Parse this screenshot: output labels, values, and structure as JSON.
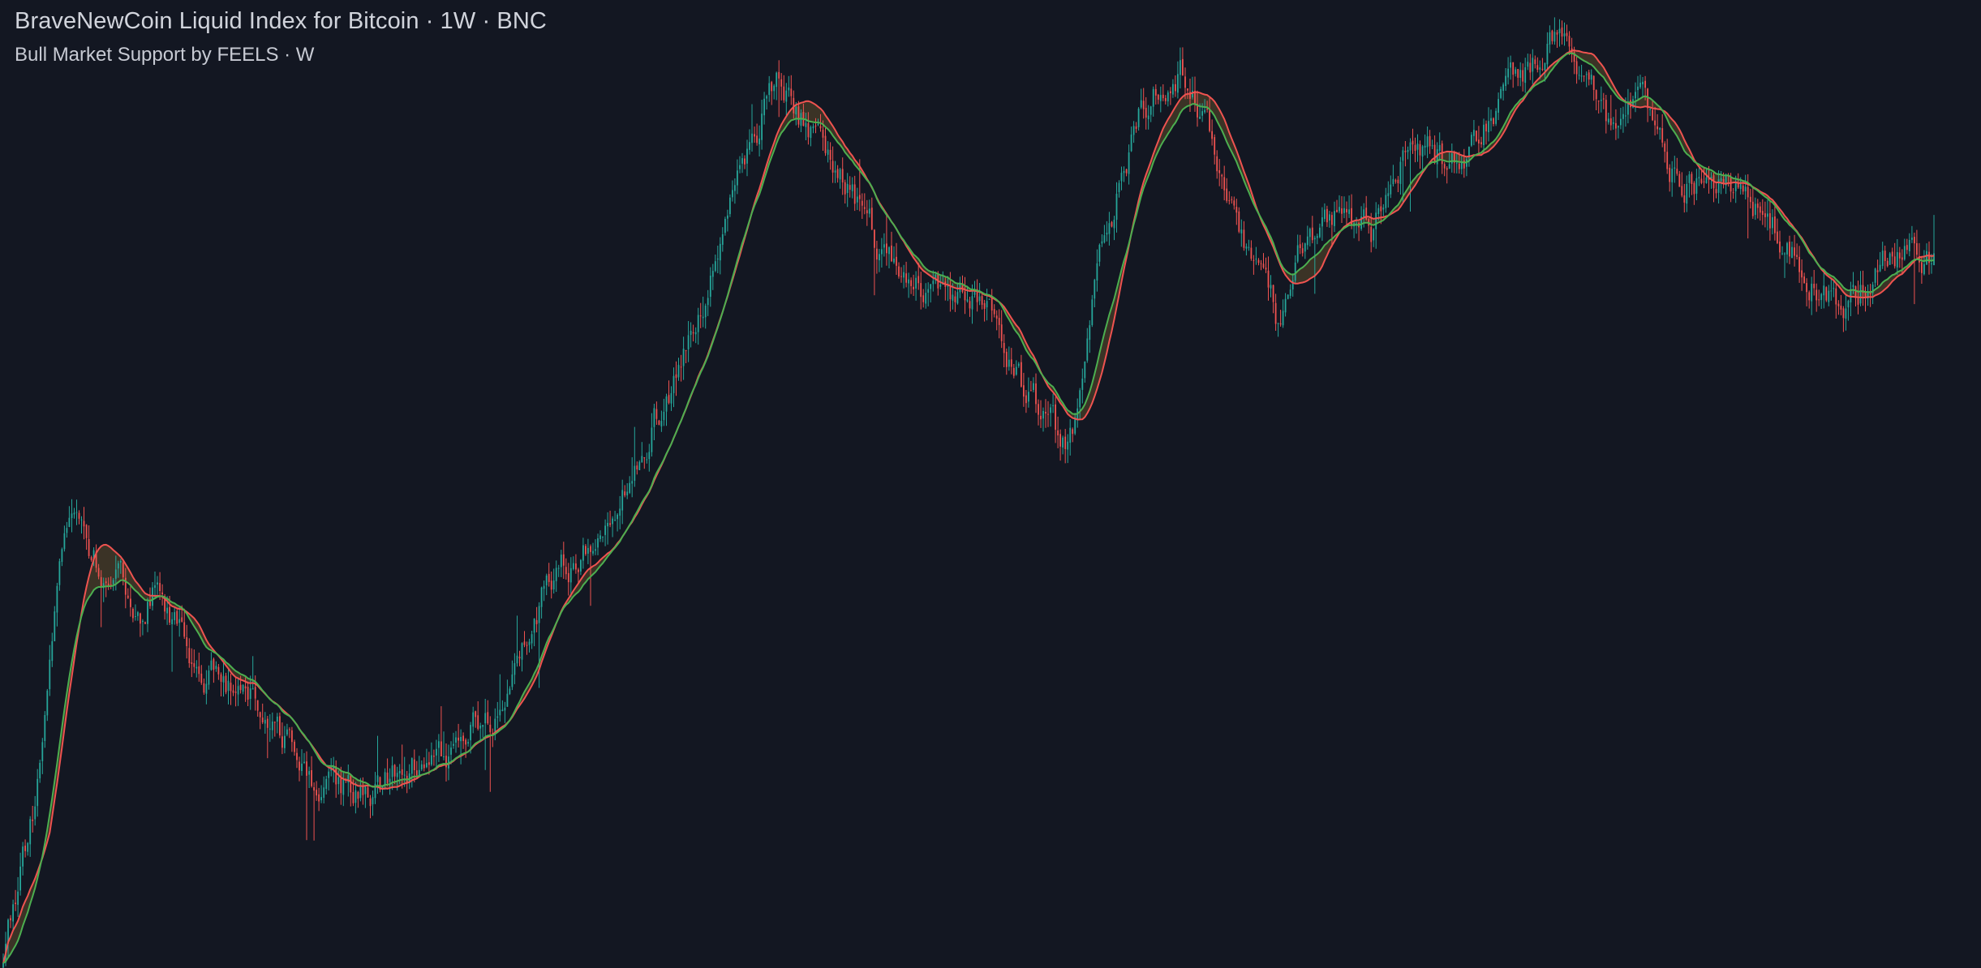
{
  "header": {
    "symbol_title": "BraveNewCoin Liquid Index for Bitcoin · 1W · BNC",
    "indicator_title": "Bull Market Support by FEELS · W"
  },
  "colors": {
    "background": "#131722",
    "text": "#d1d4dc",
    "candle_up": "#26a69a",
    "candle_down": "#ef5350",
    "support_band_red": "#ef5350",
    "support_band_green": "#4caf50",
    "band_fill": "#5d4a2a"
  },
  "chart_data": {
    "type": "candlestick",
    "title": "BraveNewCoin Liquid Index for Bitcoin · 1W · BNC",
    "subtitle": "Bull Market Support by FEELS · W",
    "timeframe": "1W",
    "axes_shown": false,
    "grid": false,
    "price_scale": "log",
    "approximate_close_path_ylim": [
      0,
      100
    ],
    "close_path": [
      [
        0,
        0
      ],
      [
        2,
        22
      ],
      [
        3,
        48
      ],
      [
        4,
        48
      ],
      [
        5,
        43
      ],
      [
        6,
        42
      ],
      [
        7,
        38
      ],
      [
        8,
        42
      ],
      [
        10,
        33
      ],
      [
        13,
        29
      ],
      [
        15,
        23
      ],
      [
        17,
        19
      ],
      [
        19,
        18
      ],
      [
        21,
        22
      ],
      [
        23,
        23
      ],
      [
        26,
        29
      ],
      [
        28,
        41
      ],
      [
        30,
        45
      ],
      [
        34,
        61
      ],
      [
        36,
        71
      ],
      [
        38,
        84
      ],
      [
        40,
        98
      ],
      [
        43,
        87
      ],
      [
        45,
        80
      ],
      [
        47,
        74
      ],
      [
        48,
        73
      ],
      [
        51,
        73
      ],
      [
        53,
        62
      ],
      [
        54,
        60
      ],
      [
        55,
        56
      ],
      [
        56,
        63
      ],
      [
        57,
        80
      ],
      [
        59,
        94
      ],
      [
        61,
        98
      ],
      [
        63,
        88
      ],
      [
        65,
        76
      ],
      [
        66,
        70
      ],
      [
        67,
        78
      ],
      [
        69,
        83
      ],
      [
        71,
        80
      ],
      [
        73,
        91
      ],
      [
        75,
        87
      ],
      [
        78,
        95
      ],
      [
        80,
        101
      ],
      [
        82,
        99
      ],
      [
        83,
        92
      ],
      [
        85,
        94
      ],
      [
        86,
        88
      ],
      [
        88,
        86
      ],
      [
        90,
        84
      ],
      [
        92,
        80
      ],
      [
        94,
        75
      ],
      [
        95,
        72
      ],
      [
        96,
        74
      ],
      [
        98,
        78
      ],
      [
        100,
        77
      ]
    ],
    "series": [
      {
        "name": "Bull Market Support Band (Red)",
        "color": "#ef5350"
      },
      {
        "name": "Bull Market Support Band (Green)",
        "color": "#4caf50"
      }
    ]
  }
}
